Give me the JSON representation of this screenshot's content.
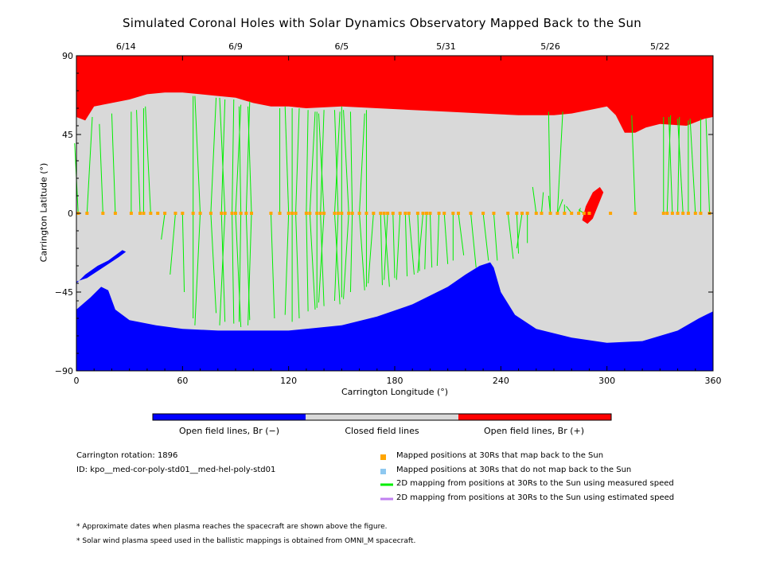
{
  "chart_data": {
    "type": "map",
    "title": "Simulated Coronal Holes with Solar Dynamics Observatory Mapped Back to the Sun",
    "xlabel": "Carrington Longitude (°)",
    "ylabel": "Carrington Latitude (°)",
    "xlim": [
      0,
      360
    ],
    "ylim": [
      -90,
      90
    ],
    "x_ticks": [
      "0",
      "60",
      "120",
      "180",
      "240",
      "300",
      "360"
    ],
    "y_ticks": [
      "90",
      "45",
      "0",
      "−45",
      "−90"
    ],
    "date_ticks": [
      {
        "lon": 28,
        "label": "6/14"
      },
      {
        "lon": 90,
        "label": "6/9"
      },
      {
        "lon": 150,
        "label": "6/5"
      },
      {
        "lon": 209,
        "label": "5/31"
      },
      {
        "lon": 268,
        "label": "5/26"
      },
      {
        "lon": 330,
        "label": "5/22"
      }
    ],
    "colors": {
      "open_negative": "#0000ff",
      "closed": "#d9d9d9",
      "open_positive": "#ff0000",
      "mapped_marker": "#ffa500",
      "unmapped_marker": "#8ec8f0",
      "measured_line": "#00ee00",
      "estimated_line": "#c080f0"
    },
    "north_hole_boundary": [
      [
        0,
        55
      ],
      [
        5,
        53
      ],
      [
        10,
        61
      ],
      [
        20,
        63
      ],
      [
        30,
        65
      ],
      [
        40,
        68
      ],
      [
        50,
        69
      ],
      [
        60,
        69
      ],
      [
        70,
        68
      ],
      [
        80,
        67
      ],
      [
        90,
        66
      ],
      [
        100,
        63
      ],
      [
        110,
        61
      ],
      [
        120,
        61
      ],
      [
        130,
        60
      ],
      [
        150,
        61
      ],
      [
        170,
        60
      ],
      [
        190,
        59
      ],
      [
        210,
        58
      ],
      [
        230,
        57
      ],
      [
        250,
        56
      ],
      [
        270,
        56
      ],
      [
        280,
        57
      ],
      [
        290,
        59
      ],
      [
        300,
        61
      ],
      [
        305,
        56
      ],
      [
        310,
        46
      ],
      [
        316,
        46
      ],
      [
        322,
        49
      ],
      [
        330,
        51
      ],
      [
        345,
        50
      ],
      [
        355,
        54
      ],
      [
        360,
        55
      ]
    ],
    "south_hole_boundary": [
      [
        0,
        -55
      ],
      [
        8,
        -48
      ],
      [
        14,
        -42
      ],
      [
        18,
        -44
      ],
      [
        22,
        -55
      ],
      [
        30,
        -61
      ],
      [
        45,
        -64
      ],
      [
        60,
        -66
      ],
      [
        80,
        -67
      ],
      [
        100,
        -67
      ],
      [
        120,
        -67
      ],
      [
        150,
        -64
      ],
      [
        170,
        -59
      ],
      [
        190,
        -52
      ],
      [
        210,
        -42
      ],
      [
        220,
        -35
      ],
      [
        228,
        -30
      ],
      [
        234,
        -28
      ],
      [
        236,
        -31
      ],
      [
        240,
        -45
      ],
      [
        248,
        -58
      ],
      [
        260,
        -66
      ],
      [
        280,
        -71
      ],
      [
        300,
        -74
      ],
      [
        320,
        -73
      ],
      [
        340,
        -67
      ],
      [
        352,
        -60
      ],
      [
        360,
        -56
      ]
    ],
    "south_patch": [
      [
        0,
        -40
      ],
      [
        5,
        -35
      ],
      [
        12,
        -30
      ],
      [
        18,
        -27
      ],
      [
        26,
        -21
      ],
      [
        28,
        -22
      ],
      [
        24,
        -25
      ],
      [
        15,
        -31
      ],
      [
        6,
        -37
      ],
      [
        0,
        -39
      ]
    ],
    "positive_patch": [
      [
        288,
        4
      ],
      [
        292,
        12
      ],
      [
        296,
        15
      ],
      [
        298,
        12
      ],
      [
        294,
        2
      ],
      [
        292,
        -3
      ],
      [
        289,
        -6
      ],
      [
        286,
        -4
      ]
    ],
    "mapped_positions": [
      1,
      6,
      15,
      22,
      31,
      36,
      38,
      42,
      46,
      50,
      56,
      60,
      66,
      70,
      76,
      82,
      84,
      88,
      90,
      93,
      96,
      99,
      110,
      115,
      120,
      122,
      124,
      130,
      132,
      136,
      138,
      140,
      146,
      148,
      150,
      154,
      156,
      160,
      164,
      168,
      172,
      174,
      176,
      179,
      183,
      186,
      188,
      193,
      196,
      198,
      200,
      205,
      208,
      213,
      216,
      223,
      230,
      236,
      244,
      249,
      252,
      255,
      260,
      263,
      268,
      272,
      276,
      280,
      284,
      287,
      290,
      302,
      316,
      332,
      334,
      337,
      340,
      343,
      346,
      350,
      353,
      358
    ],
    "mapped_lines_north": [
      [
        1,
        40
      ],
      [
        6,
        55
      ],
      [
        15,
        51
      ],
      [
        22,
        57
      ],
      [
        31,
        58
      ],
      [
        36,
        59
      ],
      [
        38,
        60
      ],
      [
        42,
        61
      ],
      [
        66,
        67
      ],
      [
        70,
        67
      ],
      [
        76,
        66
      ],
      [
        82,
        65
      ],
      [
        84,
        66
      ],
      [
        88,
        65
      ],
      [
        90,
        62
      ],
      [
        93,
        61
      ],
      [
        96,
        64
      ],
      [
        99,
        61
      ],
      [
        115,
        60
      ],
      [
        120,
        61
      ],
      [
        122,
        60
      ],
      [
        124,
        60
      ],
      [
        130,
        59
      ],
      [
        132,
        58
      ],
      [
        136,
        58
      ],
      [
        138,
        59
      ],
      [
        140,
        57
      ],
      [
        146,
        58
      ],
      [
        148,
        59
      ],
      [
        150,
        61
      ],
      [
        154,
        59
      ],
      [
        156,
        58
      ],
      [
        160,
        57
      ],
      [
        164,
        59
      ],
      [
        268,
        58
      ],
      [
        272,
        58
      ],
      [
        316,
        56
      ],
      [
        332,
        55
      ],
      [
        334,
        56
      ],
      [
        337,
        55
      ],
      [
        340,
        55
      ],
      [
        343,
        54
      ],
      [
        346,
        53
      ],
      [
        350,
        54
      ],
      [
        353,
        54
      ],
      [
        358,
        54
      ]
    ],
    "mapped_lines_south": [
      [
        50,
        -15
      ],
      [
        56,
        -35
      ],
      [
        60,
        -45
      ],
      [
        66,
        -60
      ],
      [
        70,
        -64
      ],
      [
        76,
        -57
      ],
      [
        82,
        -62
      ],
      [
        84,
        -64
      ],
      [
        88,
        -63
      ],
      [
        90,
        -65
      ],
      [
        93,
        -62
      ],
      [
        96,
        -61
      ],
      [
        99,
        -64
      ],
      [
        110,
        -60
      ],
      [
        120,
        -58
      ],
      [
        122,
        -62
      ],
      [
        124,
        -60
      ],
      [
        130,
        -56
      ],
      [
        132,
        -55
      ],
      [
        136,
        -54
      ],
      [
        138,
        -53
      ],
      [
        140,
        -51
      ],
      [
        146,
        -52
      ],
      [
        148,
        -50
      ],
      [
        150,
        -48
      ],
      [
        154,
        -49
      ],
      [
        156,
        -45
      ],
      [
        160,
        -44
      ],
      [
        164,
        -42
      ],
      [
        168,
        -40
      ],
      [
        172,
        -41
      ],
      [
        174,
        -42
      ],
      [
        176,
        -38
      ],
      [
        179,
        -37
      ],
      [
        183,
        -38
      ],
      [
        186,
        -36
      ],
      [
        188,
        -35
      ],
      [
        193,
        -33
      ],
      [
        196,
        -34
      ],
      [
        198,
        -32
      ],
      [
        200,
        -31
      ],
      [
        205,
        -30
      ],
      [
        208,
        -29
      ],
      [
        213,
        -27
      ],
      [
        216,
        -24
      ],
      [
        223,
        -31
      ],
      [
        230,
        -27
      ],
      [
        236,
        -27
      ],
      [
        244,
        -26
      ],
      [
        249,
        -23
      ],
      [
        252,
        -20
      ],
      [
        255,
        -17
      ]
    ],
    "mapped_lines_patch": [
      [
        260,
        15
      ],
      [
        263,
        12
      ],
      [
        268,
        10
      ],
      [
        272,
        8
      ],
      [
        276,
        5
      ],
      [
        280,
        4
      ],
      [
        284,
        3
      ],
      [
        287,
        2
      ],
      [
        290,
        1
      ]
    ],
    "colorbar_labels": [
      "Open field lines, Br (−)",
      "Closed field lines",
      "Open field lines, Br (+)"
    ],
    "legend": [
      {
        "marker": "square",
        "color": "#ffa500",
        "label": "Mapped positions at 30Rs that map back to the Sun"
      },
      {
        "marker": "square",
        "color": "#8ec8f0",
        "label": "Mapped positions at 30Rs that do not map back to the Sun"
      },
      {
        "marker": "line",
        "color": "#00ee00",
        "label": "2D mapping from positions at 30Rs to the Sun using measured speed"
      },
      {
        "marker": "line",
        "color": "#c080f0",
        "label": "2D mapping from positions at 30Rs to the Sun using estimated speed"
      }
    ],
    "info": {
      "rotation": "Carrington rotation: 1896",
      "id": "ID: kpo__med-cor-poly-std01__med-hel-poly-std01"
    },
    "notes": [
      "* Approximate dates when plasma reaches the spacecraft are shown above the figure.",
      "* Solar wind plasma speed used in the ballistic mappings is obtained from OMNI_M spacecraft."
    ]
  }
}
